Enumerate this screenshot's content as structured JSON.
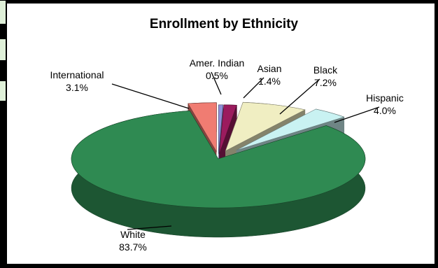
{
  "chart_data": {
    "type": "pie",
    "title": "Enrollment by Ethnicity",
    "style": "3d-exploded",
    "slices": [
      {
        "label": "Amer. Indian",
        "value": 0.5,
        "display": "0.5%",
        "color": "#8f8fd8"
      },
      {
        "label": "Asian",
        "value": 1.4,
        "display": "1.4%",
        "color": "#9b1b5e"
      },
      {
        "label": "Black",
        "value": 7.2,
        "display": "7.2%",
        "color": "#f0eec2"
      },
      {
        "label": "Hispanic",
        "value": 4.0,
        "display": "4.0%",
        "color": "#c9f2f2"
      },
      {
        "label": "White",
        "value": 83.7,
        "display": "83.7%",
        "color": "#2f8a52"
      },
      {
        "label": "International",
        "value": 3.1,
        "display": "3.1%",
        "color": "#f07c72"
      }
    ]
  }
}
